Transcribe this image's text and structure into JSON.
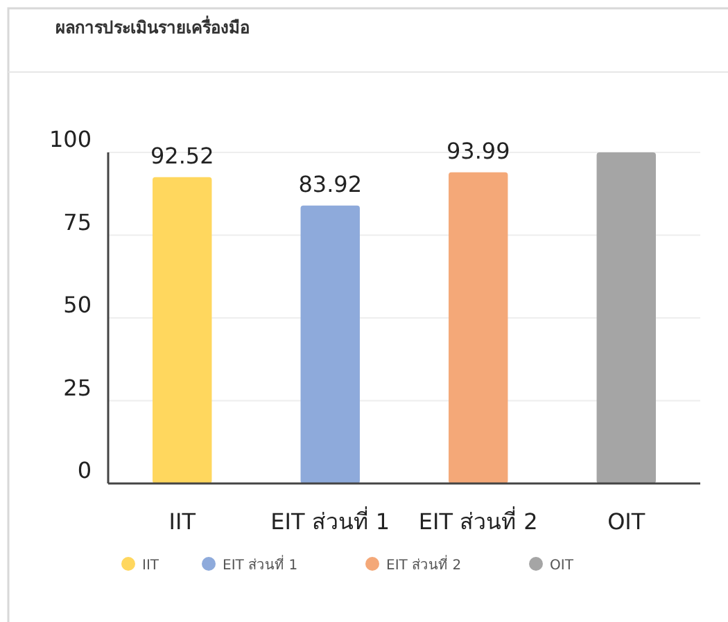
{
  "chart_data": {
    "type": "bar",
    "title": "ผลการประเมินรายเครื่องมือ",
    "categories": [
      "IIT",
      "EIT ส่วนที่ 1",
      "EIT ส่วนที่ 2",
      "OIT"
    ],
    "series": [
      {
        "name": "IIT",
        "color": "#ffd75e",
        "values": [
          92.52,
          null,
          null,
          null
        ],
        "value_labels": [
          "92.52",
          null,
          null,
          null
        ]
      },
      {
        "name": "EIT ส่วนที่ 1",
        "color": "#8eaadb",
        "values": [
          null,
          83.92,
          null,
          null
        ],
        "value_labels": [
          null,
          "83.92",
          null,
          null
        ]
      },
      {
        "name": "EIT ส่วนที่ 2",
        "color": "#f4a878",
        "values": [
          null,
          null,
          93.99,
          null
        ],
        "value_labels": [
          null,
          null,
          "93.99",
          null
        ]
      },
      {
        "name": "OIT",
        "color": "#a5a5a5",
        "values": [
          null,
          null,
          null,
          100
        ]
      }
    ],
    "ylim": [
      0,
      100
    ],
    "yticks": [
      0,
      25,
      50,
      75,
      100
    ],
    "grid": "y",
    "legend": "bottom"
  }
}
